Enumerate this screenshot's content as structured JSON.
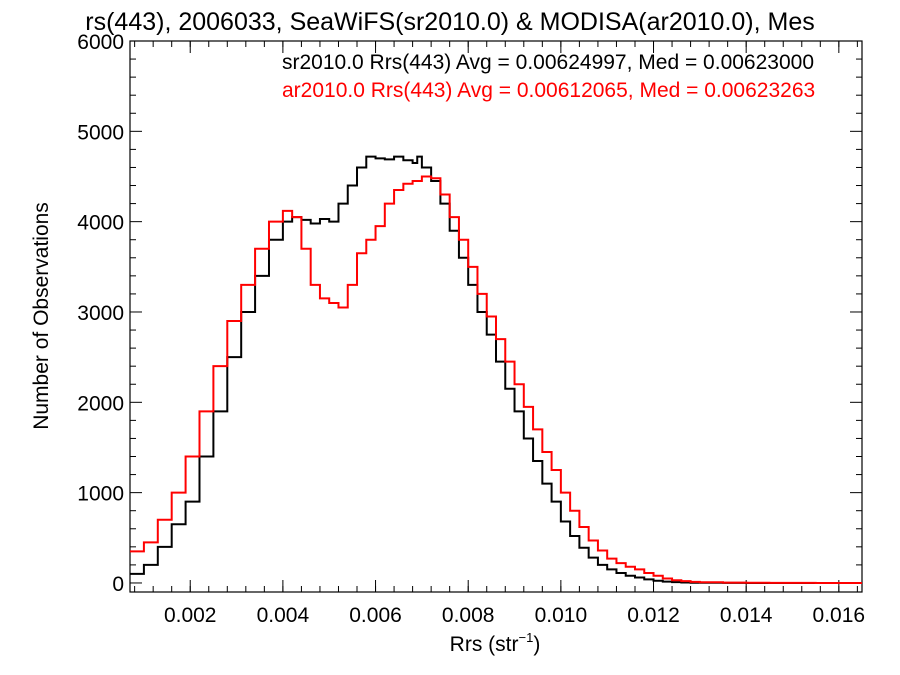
{
  "chart_data": {
    "type": "line",
    "title": "rs(443), 2006033, SeaWiFS(sr2010.0) & MODISA(ar2010.0), Mes",
    "xlabel_main": "Rrs (str",
    "xlabel_sup": "−1",
    "xlabel_end": ")",
    "ylabel": "Number of Observations",
    "xlim": [
      0.0007,
      0.0165
    ],
    "ylim": [
      -100,
      6000
    ],
    "x_ticks": [
      0.002,
      0.004,
      0.006,
      0.008,
      0.01,
      0.012,
      0.014,
      0.016
    ],
    "x_tick_labels": [
      "0.002",
      "0.004",
      "0.006",
      "0.008",
      "0.010",
      "0.012",
      "0.014",
      "0.016"
    ],
    "y_ticks": [
      0,
      1000,
      2000,
      3000,
      4000,
      5000,
      6000
    ],
    "y_tick_labels": [
      "0",
      "1000",
      "2000",
      "3000",
      "4000",
      "5000",
      "6000"
    ],
    "legend": [
      {
        "text": "sr2010.0 Rrs(443) Avg = 0.00624997, Med = 0.00623000",
        "color": "#000000"
      },
      {
        "text": "ar2010.0 Rrs(443) Avg = 0.00612065, Med = 0.00623263",
        "color": "#ff0000"
      }
    ],
    "series": [
      {
        "color": "#000000",
        "x": [
          0.0007,
          0.001,
          0.0013,
          0.0016,
          0.0019,
          0.0022,
          0.0025,
          0.0028,
          0.0031,
          0.0034,
          0.0037,
          0.004,
          0.0042,
          0.0044,
          0.0046,
          0.0048,
          0.005,
          0.0052,
          0.0054,
          0.0056,
          0.0058,
          0.006,
          0.0062,
          0.0064,
          0.0066,
          0.0068,
          0.0069,
          0.007,
          0.0072,
          0.0074,
          0.0076,
          0.0078,
          0.008,
          0.0082,
          0.0084,
          0.0086,
          0.0088,
          0.009,
          0.0092,
          0.0094,
          0.0096,
          0.0098,
          0.01,
          0.0102,
          0.0104,
          0.0106,
          0.0108,
          0.011,
          0.0112,
          0.0114,
          0.0116,
          0.0118,
          0.012,
          0.0122,
          0.0124,
          0.0126,
          0.0128,
          0.013,
          0.0135,
          0.014,
          0.0145,
          0.015,
          0.0155,
          0.016,
          0.0165
        ],
        "y": [
          100,
          200,
          400,
          650,
          900,
          1400,
          1900,
          2500,
          3000,
          3400,
          3800,
          4000,
          4050,
          4020,
          3980,
          4030,
          4000,
          4200,
          4400,
          4600,
          4720,
          4700,
          4690,
          4720,
          4680,
          4650,
          4720,
          4600,
          4450,
          4200,
          3900,
          3600,
          3300,
          3000,
          2750,
          2450,
          2150,
          1900,
          1600,
          1350,
          1100,
          900,
          680,
          520,
          390,
          280,
          200,
          150,
          110,
          80,
          60,
          40,
          25,
          15,
          10,
          5,
          3,
          2,
          1,
          0,
          0,
          0,
          0,
          0,
          0
        ]
      },
      {
        "color": "#ff0000",
        "x": [
          0.0007,
          0.001,
          0.0013,
          0.0016,
          0.0019,
          0.0022,
          0.0025,
          0.0028,
          0.0031,
          0.0034,
          0.0037,
          0.004,
          0.0042,
          0.0044,
          0.0046,
          0.0048,
          0.005,
          0.0052,
          0.0054,
          0.0056,
          0.0058,
          0.006,
          0.0062,
          0.0064,
          0.0066,
          0.0068,
          0.007,
          0.0072,
          0.0074,
          0.0076,
          0.0078,
          0.008,
          0.0082,
          0.0084,
          0.0086,
          0.0088,
          0.009,
          0.0092,
          0.0094,
          0.0096,
          0.0098,
          0.01,
          0.0102,
          0.0104,
          0.0106,
          0.0108,
          0.011,
          0.0112,
          0.0114,
          0.0116,
          0.0118,
          0.012,
          0.0122,
          0.0124,
          0.0126,
          0.0128,
          0.013,
          0.0135,
          0.014,
          0.0145,
          0.015,
          0.0155,
          0.016,
          0.0165
        ],
        "y": [
          350,
          450,
          700,
          1000,
          1400,
          1900,
          2400,
          2900,
          3300,
          3700,
          4000,
          4120,
          4050,
          3700,
          3300,
          3150,
          3100,
          3050,
          3300,
          3650,
          3800,
          3950,
          4200,
          4350,
          4420,
          4450,
          4500,
          4480,
          4300,
          4050,
          3800,
          3500,
          3200,
          2950,
          2700,
          2450,
          2200,
          1950,
          1700,
          1450,
          1250,
          1000,
          800,
          620,
          470,
          360,
          270,
          220,
          180,
          150,
          110,
          80,
          50,
          30,
          20,
          12,
          8,
          4,
          2,
          1,
          1,
          0,
          0,
          0
        ]
      }
    ]
  }
}
